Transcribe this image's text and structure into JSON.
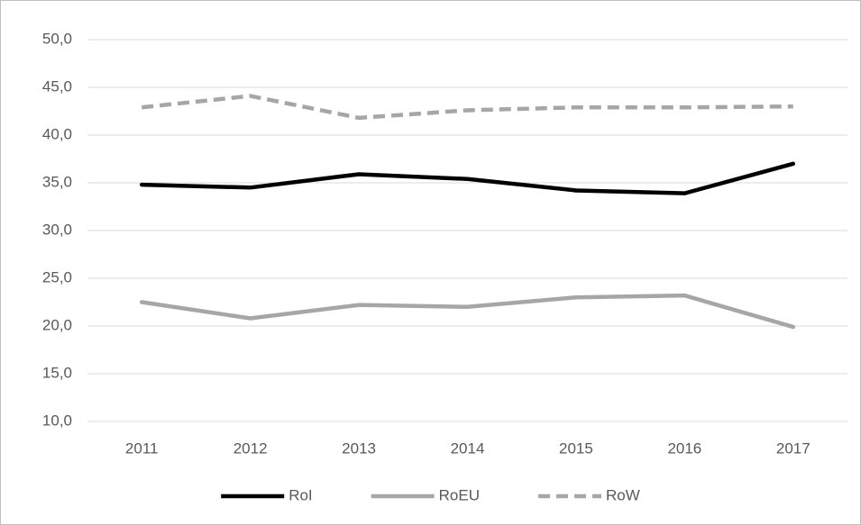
{
  "chart_data": {
    "type": "line",
    "categories": [
      "2011",
      "2012",
      "2013",
      "2014",
      "2015",
      "2016",
      "2017"
    ],
    "series": [
      {
        "name": "RoI",
        "color": "#000000",
        "values": [
          34.8,
          34.5,
          35.9,
          35.4,
          34.2,
          33.9,
          37.0
        ]
      },
      {
        "name": "RoEU",
        "color": "#a6a6a6",
        "values": [
          22.5,
          20.8,
          22.2,
          22.0,
          23.0,
          23.2,
          19.9
        ]
      },
      {
        "name": "RoW",
        "color": "#a6a6a6",
        "dashed": true,
        "values": [
          42.9,
          44.1,
          41.8,
          42.6,
          42.9,
          42.9,
          43.0
        ]
      }
    ],
    "ylim": [
      10,
      50
    ],
    "yticks": [
      {
        "value": 10,
        "label": "10,0"
      },
      {
        "value": 15,
        "label": "15,0"
      },
      {
        "value": 20,
        "label": "20,0"
      },
      {
        "value": 25,
        "label": "25,0"
      },
      {
        "value": 30,
        "label": "30,0"
      },
      {
        "value": 35,
        "label": "35,0"
      },
      {
        "value": 40,
        "label": "40,0"
      },
      {
        "value": 45,
        "label": "45,0"
      },
      {
        "value": 50,
        "label": "50,0"
      }
    ],
    "grid": true,
    "legend": "bottom"
  }
}
